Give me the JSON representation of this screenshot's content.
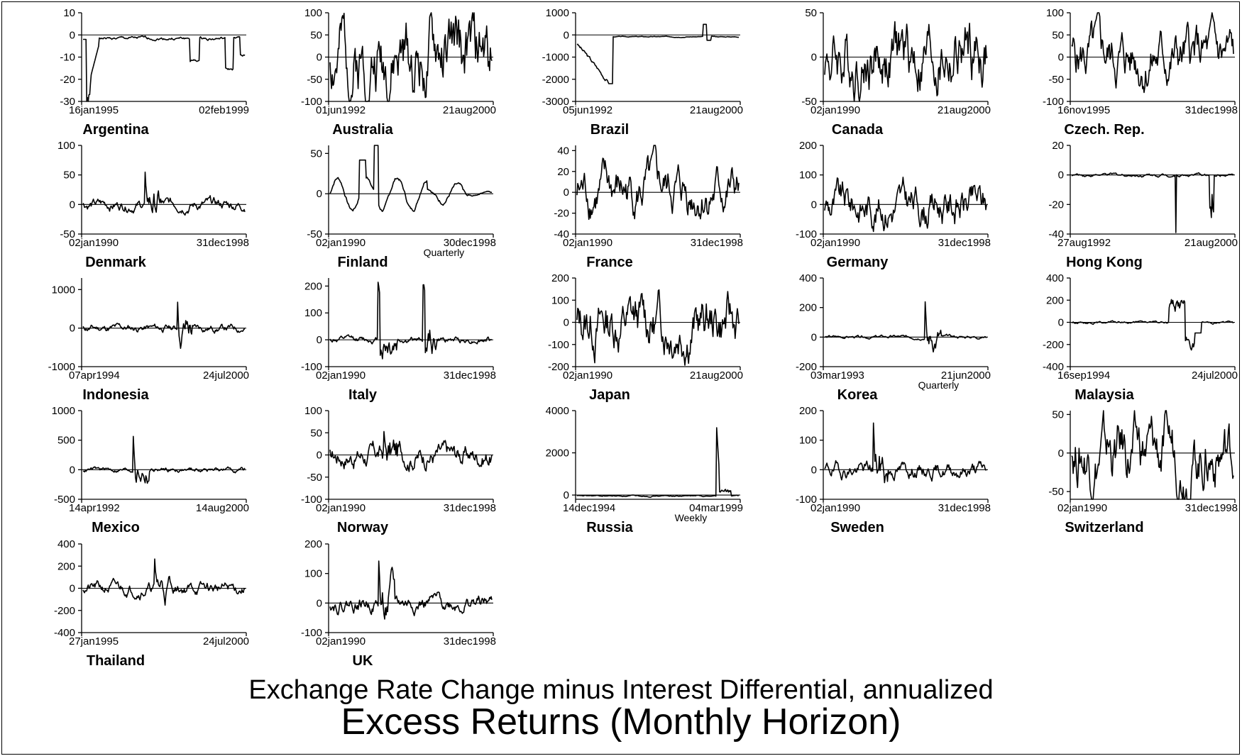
{
  "figure": {
    "caption_line1": "Exchange Rate Change minus Interest Differential, annualized",
    "caption_line2": "Excess Returns (Monthly Horizon)"
  },
  "chart_data": [
    {
      "type": "line",
      "country": "Argentina",
      "x_start": "16jan1995",
      "x_end": "02feb1999",
      "ylim": [
        -30,
        10
      ],
      "yticks": [
        10,
        0,
        -10,
        -20,
        -30
      ],
      "note": "",
      "seed": 1,
      "pattern": "argentina"
    },
    {
      "type": "line",
      "country": "Australia",
      "x_start": "01jun1992",
      "x_end": "21aug2000",
      "ylim": [
        -100,
        100
      ],
      "yticks": [
        100,
        50,
        0,
        -50,
        -100
      ],
      "note": "",
      "seed": 2,
      "pattern": "noise",
      "amp": 0.35
    },
    {
      "type": "line",
      "country": "Brazil",
      "x_start": "05jun1992",
      "x_end": "21aug2000",
      "ylim": [
        -3000,
        1000
      ],
      "yticks": [
        1000,
        0,
        -1000,
        -2000,
        -3000
      ],
      "note": "",
      "seed": 3,
      "pattern": "brazil"
    },
    {
      "type": "line",
      "country": "Canada",
      "x_start": "02jan1990",
      "x_end": "21aug2000",
      "ylim": [
        -50,
        50
      ],
      "yticks": [
        50,
        0,
        -50
      ],
      "note": "",
      "seed": 4,
      "pattern": "noise",
      "amp": 0.32
    },
    {
      "type": "line",
      "country": "Czech. Rep.",
      "x_start": "16nov1995",
      "x_end": "31dec1998",
      "ylim": [
        -100,
        100
      ],
      "yticks": [
        100,
        50,
        0,
        -50,
        -100
      ],
      "note": "",
      "seed": 5,
      "pattern": "noise",
      "amp": 0.25
    },
    {
      "type": "line",
      "country": "Denmark",
      "x_start": "02jan1990",
      "x_end": "31dec1998",
      "ylim": [
        -50,
        100
      ],
      "yticks": [
        100,
        50,
        0,
        -50
      ],
      "note": "",
      "seed": 6,
      "pattern": "spike",
      "amp": 0.07,
      "spike_at": 0.38,
      "spike": 0.45
    },
    {
      "type": "line",
      "country": "Finland",
      "x_start": "02jan1990",
      "x_end": "30dec1998",
      "ylim": [
        -50,
        60
      ],
      "yticks": [
        50,
        0,
        -50
      ],
      "note": "Quarterly",
      "seed": 7,
      "pattern": "finland"
    },
    {
      "type": "line",
      "country": "France",
      "x_start": "02jan1990",
      "x_end": "31dec1998",
      "ylim": [
        -40,
        45
      ],
      "yticks": [
        40,
        20,
        0,
        -20,
        -40
      ],
      "note": "",
      "seed": 8,
      "pattern": "noise",
      "amp": 0.22
    },
    {
      "type": "line",
      "country": "Germany",
      "x_start": "02jan1990",
      "x_end": "31dec1998",
      "ylim": [
        -100,
        200
      ],
      "yticks": [
        200,
        100,
        0,
        -100
      ],
      "note": "",
      "seed": 9,
      "pattern": "noise",
      "amp": 0.18
    },
    {
      "type": "line",
      "country": "Hong Kong",
      "x_start": "27aug1992",
      "x_end": "21aug2000",
      "ylim": [
        -40,
        20
      ],
      "yticks": [
        20,
        0,
        -20,
        -40
      ],
      "note": "",
      "seed": 10,
      "pattern": "hongkong"
    },
    {
      "type": "line",
      "country": "Indonesia",
      "x_start": "07apr1994",
      "x_end": "24jul2000",
      "ylim": [
        -1000,
        1300
      ],
      "yticks": [
        1000,
        0,
        -1000
      ],
      "note": "",
      "seed": 11,
      "pattern": "spike",
      "amp": 0.05,
      "spike_at": 0.58,
      "spike": 0.52
    },
    {
      "type": "line",
      "country": "Italy",
      "x_start": "02jan1990",
      "x_end": "31dec1998",
      "ylim": [
        -100,
        230
      ],
      "yticks": [
        200,
        100,
        0,
        -100
      ],
      "note": "",
      "seed": 12,
      "pattern": "italy"
    },
    {
      "type": "line",
      "country": "Japan",
      "x_start": "02jan1990",
      "x_end": "21aug2000",
      "ylim": [
        -200,
        200
      ],
      "yticks": [
        200,
        100,
        0,
        -100,
        -200
      ],
      "note": "",
      "seed": 13,
      "pattern": "noise",
      "amp": 0.25
    },
    {
      "type": "line",
      "country": "Korea",
      "x_start": "03mar1993",
      "x_end": "21jun2000",
      "ylim": [
        -200,
        400
      ],
      "yticks": [
        400,
        200,
        0,
        -200
      ],
      "note": "Quarterly",
      "seed": 14,
      "pattern": "spike",
      "amp": 0.02,
      "spike_at": 0.62,
      "spike": 0.45
    },
    {
      "type": "line",
      "country": "Malaysia",
      "x_start": "16sep1994",
      "x_end": "24jul2000",
      "ylim": [
        -400,
        400
      ],
      "yticks": [
        400,
        200,
        0,
        -200,
        -400
      ],
      "note": "",
      "seed": 15,
      "pattern": "malaysia"
    },
    {
      "type": "line",
      "country": "Mexico",
      "x_start": "14apr1992",
      "x_end": "14aug2000",
      "ylim": [
        -500,
        1000
      ],
      "yticks": [
        1000,
        500,
        0,
        -500
      ],
      "note": "",
      "seed": 16,
      "pattern": "spike",
      "amp": 0.03,
      "spike_at": 0.31,
      "spike": 0.43
    },
    {
      "type": "line",
      "country": "Norway",
      "x_start": "02jan1990",
      "x_end": "31dec1998",
      "ylim": [
        -100,
        100
      ],
      "yticks": [
        100,
        50,
        0,
        -50,
        -100
      ],
      "note": "",
      "seed": 17,
      "pattern": "spike",
      "amp": 0.14,
      "spike_at": 0.33,
      "spike": 0.35
    },
    {
      "type": "line",
      "country": "Russia",
      "x_start": "14dec1994",
      "x_end": "04mar1999",
      "ylim": [
        -200,
        4000
      ],
      "yticks": [
        4000,
        2000,
        0
      ],
      "note": "Weekly",
      "seed": 18,
      "pattern": "russia"
    },
    {
      "type": "line",
      "country": "Sweden",
      "x_start": "02jan1990",
      "x_end": "31dec1998",
      "ylim": [
        -100,
        200
      ],
      "yticks": [
        200,
        100,
        0,
        -100
      ],
      "note": "",
      "seed": 19,
      "pattern": "spike",
      "amp": 0.1,
      "spike_at": 0.3,
      "spike": 0.6
    },
    {
      "type": "line",
      "country": "Switzerland",
      "x_start": "02jan1990",
      "x_end": "31dec1998",
      "ylim": [
        -60,
        55
      ],
      "yticks": [
        50,
        0,
        -50
      ],
      "note": "",
      "seed": 20,
      "pattern": "noise",
      "amp": 0.3
    },
    {
      "type": "line",
      "country": "Thailand",
      "x_start": "27jan1995",
      "x_end": "24jul2000",
      "ylim": [
        -400,
        400
      ],
      "yticks": [
        400,
        200,
        0,
        -200,
        -400
      ],
      "note": "",
      "seed": 21,
      "pattern": "spike",
      "amp": 0.08,
      "spike_at": 0.44,
      "spike": 0.35
    },
    {
      "type": "line",
      "country": "UK",
      "x_start": "02jan1990",
      "x_end": "31dec1998",
      "ylim": [
        -100,
        200
      ],
      "yticks": [
        200,
        100,
        0,
        -100
      ],
      "note": "",
      "seed": 22,
      "pattern": "spike",
      "amp": 0.1,
      "spike_at": 0.3,
      "spike": 0.55
    }
  ]
}
